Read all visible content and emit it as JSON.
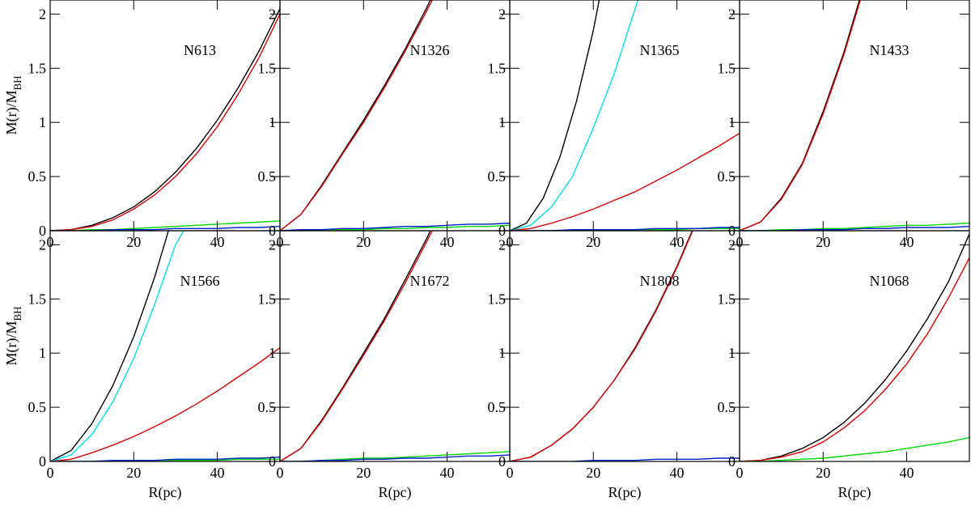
{
  "chart_data": [
    {
      "type": "line",
      "title": "N613",
      "ylabel": "M(r)/M",
      "ylabel_sub": "BH",
      "x": [
        0,
        5,
        10,
        15,
        20,
        25,
        30,
        35,
        40,
        45,
        50,
        55
      ],
      "xlim": [
        0,
        55
      ],
      "ylim": [
        0,
        2.13
      ],
      "xticks": [
        0,
        20,
        40
      ],
      "yticks": [
        0,
        0.5,
        1,
        1.5,
        2
      ],
      "series": [
        {
          "color": "#000000",
          "values": [
            0,
            0.01,
            0.05,
            0.12,
            0.22,
            0.36,
            0.54,
            0.76,
            1.02,
            1.32,
            1.66,
            2.05
          ]
        },
        {
          "color": "#e00000",
          "values": [
            0,
            0.01,
            0.04,
            0.1,
            0.2,
            0.33,
            0.5,
            0.71,
            0.96,
            1.26,
            1.6,
            2.0
          ]
        },
        {
          "color": "#00d800",
          "values": [
            0,
            0,
            0.01,
            0.01,
            0.02,
            0.03,
            0.04,
            0.05,
            0.06,
            0.07,
            0.08,
            0.09
          ]
        },
        {
          "color": "#0020d0",
          "values": [
            0,
            0,
            0,
            0.01,
            0.01,
            0.01,
            0.02,
            0.02,
            0.02,
            0.03,
            0.03,
            0.04
          ]
        }
      ]
    },
    {
      "type": "line",
      "title": "N1326",
      "x": [
        0,
        5,
        10,
        15,
        20,
        25,
        30,
        35,
        40,
        45,
        50,
        55
      ],
      "xlim": [
        0,
        55
      ],
      "ylim": [
        0,
        2.13
      ],
      "xticks": [
        0,
        20,
        40
      ],
      "yticks": [
        0,
        0.5,
        1,
        1.5,
        2
      ],
      "series": [
        {
          "color": "#000000",
          "x": [
            0,
            5,
            10,
            15,
            20,
            25,
            30,
            35,
            40
          ],
          "values": [
            0,
            0.15,
            0.42,
            0.72,
            1.02,
            1.34,
            1.68,
            2.05,
            2.45
          ]
        },
        {
          "color": "#e00000",
          "x": [
            0,
            5,
            10,
            15,
            20,
            25,
            30,
            35,
            40
          ],
          "values": [
            0,
            0.15,
            0.41,
            0.71,
            1.0,
            1.32,
            1.66,
            2.02,
            2.4
          ]
        },
        {
          "color": "#00d800",
          "values": [
            0,
            0,
            0.01,
            0.01,
            0.01,
            0.02,
            0.02,
            0.03,
            0.03,
            0.04,
            0.04,
            0.05
          ]
        },
        {
          "color": "#0020d0",
          "values": [
            0,
            0.01,
            0.01,
            0.02,
            0.02,
            0.03,
            0.04,
            0.04,
            0.05,
            0.06,
            0.06,
            0.07
          ]
        }
      ]
    },
    {
      "type": "line",
      "title": "N1365",
      "x": [
        0,
        5,
        10,
        15,
        20,
        25,
        30,
        35,
        40,
        45,
        50,
        55
      ],
      "xlim": [
        0,
        55
      ],
      "ylim": [
        0,
        2.13
      ],
      "xticks": [
        0,
        20,
        40
      ],
      "yticks": [
        0,
        0.5,
        1,
        1.5,
        2
      ],
      "series": [
        {
          "color": "#000000",
          "x": [
            0,
            4,
            8,
            12,
            16,
            20,
            22
          ],
          "values": [
            0,
            0.07,
            0.3,
            0.68,
            1.2,
            1.85,
            2.25
          ]
        },
        {
          "color": "#00e0ee",
          "x": [
            0,
            5,
            10,
            15,
            20,
            25,
            30,
            32
          ],
          "values": [
            0,
            0.05,
            0.22,
            0.5,
            0.95,
            1.45,
            2.05,
            2.3
          ]
        },
        {
          "color": "#e00000",
          "values": [
            0,
            0.02,
            0.07,
            0.13,
            0.2,
            0.28,
            0.36,
            0.46,
            0.56,
            0.67,
            0.78,
            0.9
          ]
        },
        {
          "color": "#00d800",
          "values": [
            0,
            0,
            0,
            0,
            0.01,
            0.01,
            0.01,
            0.01,
            0.01,
            0.02,
            0.02,
            0.02
          ]
        },
        {
          "color": "#0020d0",
          "values": [
            0,
            0,
            0,
            0.01,
            0.01,
            0.01,
            0.01,
            0.02,
            0.02,
            0.02,
            0.03,
            0.03
          ]
        }
      ]
    },
    {
      "type": "line",
      "title": "N1433",
      "x": [
        0,
        5,
        10,
        15,
        20,
        25,
        30,
        35,
        40,
        45,
        50,
        55
      ],
      "xlim": [
        0,
        55
      ],
      "ylim": [
        0,
        2.13
      ],
      "xticks": [
        0,
        20,
        40
      ],
      "yticks": [
        0,
        0.5,
        1,
        1.5,
        2
      ],
      "series": [
        {
          "color": "#000000",
          "x": [
            0,
            5,
            10,
            15,
            20,
            25,
            30
          ],
          "values": [
            0,
            0.08,
            0.3,
            0.62,
            1.1,
            1.65,
            2.3
          ]
        },
        {
          "color": "#e00000",
          "x": [
            0,
            5,
            10,
            15,
            20,
            25,
            30
          ],
          "values": [
            0,
            0.08,
            0.29,
            0.61,
            1.08,
            1.63,
            2.27
          ]
        },
        {
          "color": "#00d800",
          "values": [
            0,
            0,
            0.01,
            0.01,
            0.02,
            0.02,
            0.03,
            0.04,
            0.05,
            0.05,
            0.06,
            0.07
          ]
        },
        {
          "color": "#0020d0",
          "values": [
            0,
            0,
            0,
            0.01,
            0.01,
            0.01,
            0.02,
            0.02,
            0.03,
            0.03,
            0.03,
            0.04
          ]
        }
      ]
    },
    {
      "type": "line",
      "title": "N1566",
      "ylabel": "M(r)/M",
      "ylabel_sub": "BH",
      "xlabel": "R(pc)",
      "x": [
        0,
        5,
        10,
        15,
        20,
        25,
        30,
        35,
        40,
        45,
        50,
        55
      ],
      "xlim": [
        0,
        55
      ],
      "ylim": [
        0,
        2.13
      ],
      "xticks": [
        0,
        20,
        40
      ],
      "yticks": [
        0,
        0.5,
        1,
        1.5,
        2
      ],
      "series": [
        {
          "color": "#000000",
          "x": [
            0,
            5,
            10,
            15,
            20,
            25,
            30
          ],
          "values": [
            0,
            0.1,
            0.35,
            0.7,
            1.15,
            1.7,
            2.35
          ]
        },
        {
          "color": "#00e0ee",
          "x": [
            0,
            5,
            10,
            15,
            20,
            25,
            30,
            33
          ],
          "values": [
            0,
            0.06,
            0.25,
            0.55,
            0.95,
            1.45,
            2.0,
            2.2
          ]
        },
        {
          "color": "#e00000",
          "values": [
            0,
            0.02,
            0.08,
            0.15,
            0.23,
            0.32,
            0.42,
            0.53,
            0.65,
            0.78,
            0.91,
            1.05
          ]
        },
        {
          "color": "#00d800",
          "values": [
            0,
            0,
            0,
            0,
            0.01,
            0.01,
            0.01,
            0.01,
            0.01,
            0.02,
            0.02,
            0.02
          ]
        },
        {
          "color": "#0020d0",
          "values": [
            0,
            0,
            0,
            0.01,
            0.01,
            0.01,
            0.02,
            0.02,
            0.02,
            0.03,
            0.03,
            0.04
          ]
        }
      ]
    },
    {
      "type": "line",
      "title": "N1672",
      "xlabel": "R(pc)",
      "x": [
        0,
        5,
        10,
        15,
        20,
        25,
        30,
        35,
        40,
        45,
        50,
        55
      ],
      "xlim": [
        0,
        55
      ],
      "ylim": [
        0,
        2.13
      ],
      "xticks": [
        0,
        20,
        40
      ],
      "yticks": [
        0,
        0.5,
        1,
        1.5,
        2
      ],
      "series": [
        {
          "color": "#000000",
          "x": [
            0,
            5,
            10,
            15,
            20,
            25,
            30,
            35,
            40
          ],
          "values": [
            0,
            0.12,
            0.38,
            0.68,
            1.0,
            1.32,
            1.68,
            2.05,
            2.45
          ]
        },
        {
          "color": "#e00000",
          "x": [
            0,
            5,
            10,
            15,
            20,
            25,
            30,
            35,
            40
          ],
          "values": [
            0,
            0.12,
            0.37,
            0.67,
            0.98,
            1.3,
            1.65,
            2.02,
            2.4
          ]
        },
        {
          "color": "#00d800",
          "values": [
            0,
            0,
            0.01,
            0.02,
            0.03,
            0.03,
            0.04,
            0.05,
            0.06,
            0.07,
            0.08,
            0.09
          ]
        },
        {
          "color": "#0020d0",
          "values": [
            0,
            0,
            0.01,
            0.01,
            0.02,
            0.02,
            0.03,
            0.03,
            0.04,
            0.05,
            0.05,
            0.06
          ]
        }
      ]
    },
    {
      "type": "line",
      "title": "N1808",
      "xlabel": "R(pc)",
      "x": [
        0,
        5,
        10,
        15,
        20,
        25,
        30,
        35,
        40,
        45,
        50,
        55
      ],
      "xlim": [
        0,
        55
      ],
      "ylim": [
        0,
        2.13
      ],
      "xticks": [
        0,
        20,
        40
      ],
      "yticks": [
        0,
        0.5,
        1,
        1.5,
        2
      ],
      "series": [
        {
          "color": "#000000",
          "x": [
            0,
            5,
            10,
            15,
            20,
            25,
            30,
            35,
            40,
            45
          ],
          "values": [
            0,
            0.04,
            0.15,
            0.3,
            0.5,
            0.75,
            1.05,
            1.4,
            1.8,
            2.25
          ]
        },
        {
          "color": "#e00000",
          "x": [
            0,
            5,
            10,
            15,
            20,
            25,
            30,
            35,
            40,
            45
          ],
          "values": [
            0,
            0.04,
            0.15,
            0.3,
            0.5,
            0.75,
            1.04,
            1.39,
            1.79,
            2.24
          ]
        },
        {
          "color": "#0020d0",
          "values": [
            0,
            0,
            0,
            0,
            0.01,
            0.01,
            0.01,
            0.02,
            0.02,
            0.02,
            0.03,
            0.03
          ]
        }
      ]
    },
    {
      "type": "line",
      "title": "N1068",
      "xlabel": "R(pc)",
      "x": [
        0,
        5,
        10,
        15,
        20,
        25,
        30,
        35,
        40,
        45,
        50,
        55
      ],
      "xlim": [
        0,
        55
      ],
      "ylim": [
        0,
        2.13
      ],
      "xticks": [
        0,
        20,
        40
      ],
      "yticks": [
        0,
        0.5,
        1,
        1.5,
        2
      ],
      "series": [
        {
          "color": "#000000",
          "values": [
            0,
            0.01,
            0.05,
            0.12,
            0.22,
            0.36,
            0.54,
            0.76,
            1.02,
            1.32,
            1.66,
            2.1
          ]
        },
        {
          "color": "#e00000",
          "values": [
            0,
            0.01,
            0.04,
            0.09,
            0.18,
            0.31,
            0.47,
            0.67,
            0.9,
            1.18,
            1.51,
            1.88
          ]
        },
        {
          "color": "#00d800",
          "values": [
            0,
            0,
            0.01,
            0.02,
            0.03,
            0.05,
            0.07,
            0.09,
            0.12,
            0.15,
            0.18,
            0.22
          ]
        }
      ]
    }
  ]
}
